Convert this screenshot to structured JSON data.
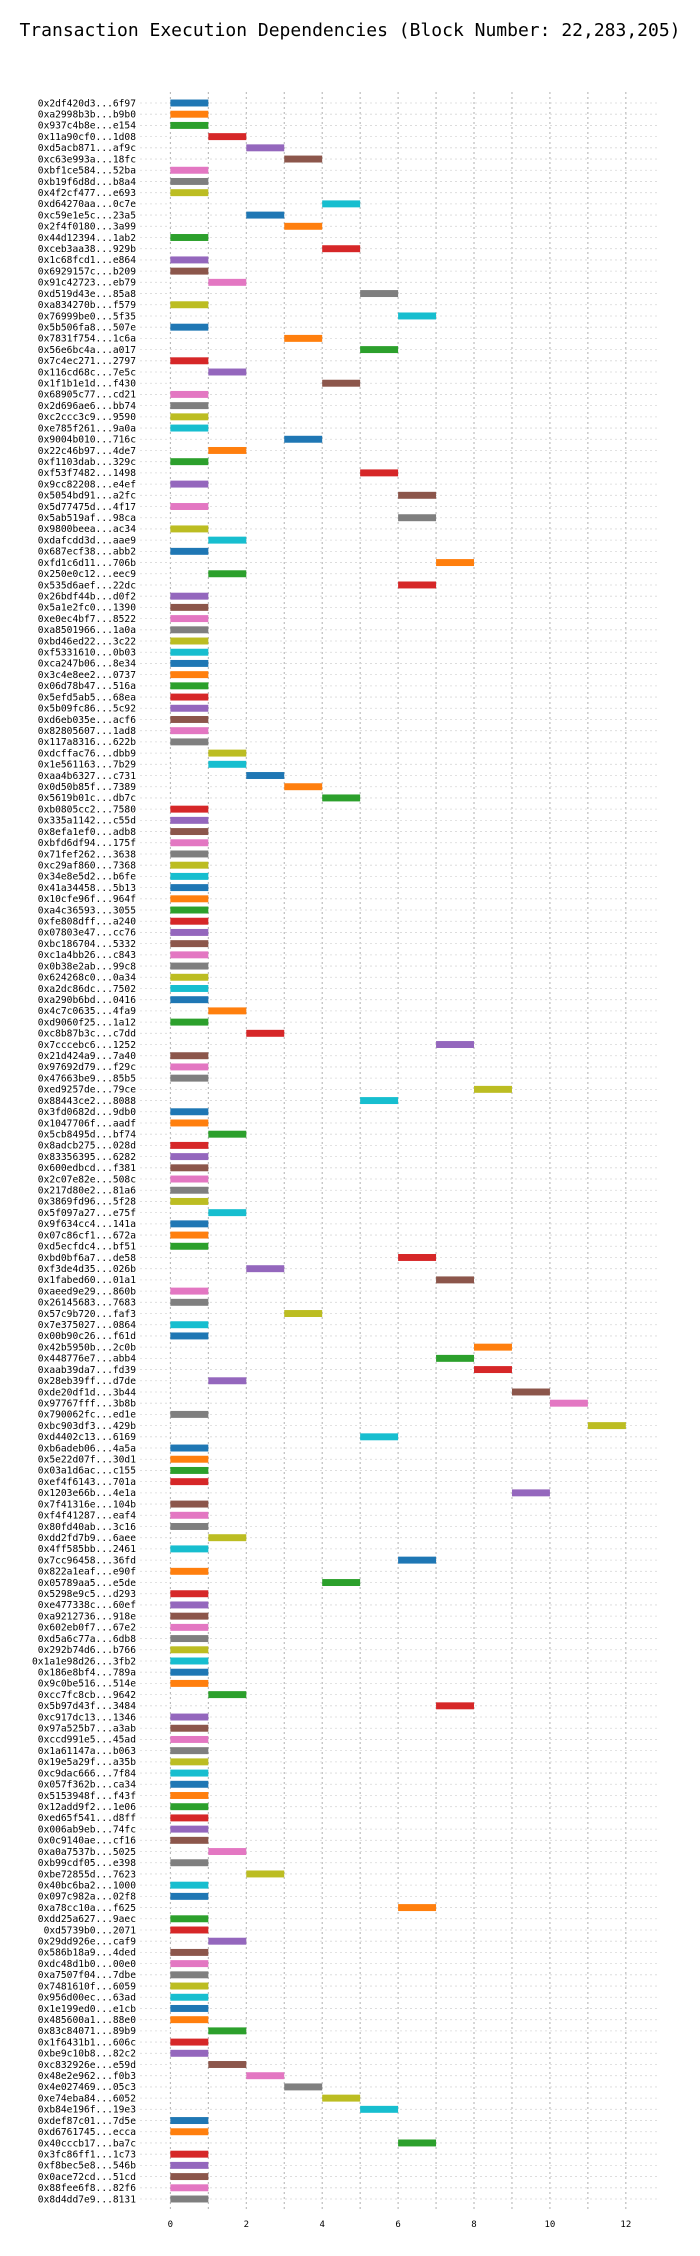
{
  "chart_data": {
    "type": "bar",
    "title": "Transaction Execution Dependencies (Block Number: 22,283,205)",
    "xlabel": "",
    "ylabel": "",
    "xlim": [
      -0.8,
      12.9
    ],
    "x_ticks": [
      0,
      2,
      4,
      6,
      8,
      10,
      12
    ],
    "grid": true,
    "palette": [
      "#1f77b4",
      "#ff7f0e",
      "#2ca02c",
      "#d62728",
      "#9467bd",
      "#8c564b",
      "#e377c2",
      "#7f7f7f",
      "#bcbd22",
      "#17becf"
    ],
    "transactions": [
      {
        "label": "0x2df420d3...6f97",
        "start": 0,
        "end": 1
      },
      {
        "label": "0xa2998b3b...b9b0",
        "start": 0,
        "end": 1
      },
      {
        "label": "0x937c4b8e...e154",
        "start": 0,
        "end": 1
      },
      {
        "label": "0x11a90cf0...1d08",
        "start": 1,
        "end": 2
      },
      {
        "label": "0xd5acb871...af9c",
        "start": 2,
        "end": 3
      },
      {
        "label": "0xc63e993a...18fc",
        "start": 3,
        "end": 4
      },
      {
        "label": "0xbf1ce584...52ba",
        "start": 0,
        "end": 1
      },
      {
        "label": "0xb19f6d8d...b8a4",
        "start": 0,
        "end": 1
      },
      {
        "label": "0x4f2cf477...e693",
        "start": 0,
        "end": 1
      },
      {
        "label": "0xd64270aa...0c7e",
        "start": 4,
        "end": 5
      },
      {
        "label": "0xc59e1e5c...23a5",
        "start": 2,
        "end": 3
      },
      {
        "label": "0x2f4f0180...3a99",
        "start": 3,
        "end": 4
      },
      {
        "label": "0x44d12394...1ab2",
        "start": 0,
        "end": 1
      },
      {
        "label": "0xceb3aa38...929b",
        "start": 4,
        "end": 5
      },
      {
        "label": "0x1c68fcd1...e864",
        "start": 0,
        "end": 1
      },
      {
        "label": "0x6929157c...b209",
        "start": 0,
        "end": 1
      },
      {
        "label": "0x91c42723...eb79",
        "start": 1,
        "end": 2
      },
      {
        "label": "0xd519d43e...85a8",
        "start": 5,
        "end": 6
      },
      {
        "label": "0xa834270b...f579",
        "start": 0,
        "end": 1
      },
      {
        "label": "0x76999be0...5f35",
        "start": 6,
        "end": 7
      },
      {
        "label": "0x5b506fa8...507e",
        "start": 0,
        "end": 1
      },
      {
        "label": "0x7831f754...1c6a",
        "start": 3,
        "end": 4
      },
      {
        "label": "0x56e6bc4a...a017",
        "start": 5,
        "end": 6
      },
      {
        "label": "0x7c4ec271...2797",
        "start": 0,
        "end": 1
      },
      {
        "label": "0x116cd68c...7e5c",
        "start": 1,
        "end": 2
      },
      {
        "label": "0x1f1b1e1d...f430",
        "start": 4,
        "end": 5
      },
      {
        "label": "0x68905c77...cd21",
        "start": 0,
        "end": 1
      },
      {
        "label": "0x2d696ae6...bb74",
        "start": 0,
        "end": 1
      },
      {
        "label": "0xc2ccc3c9...9590",
        "start": 0,
        "end": 1
      },
      {
        "label": "0xe785f261...9a0a",
        "start": 0,
        "end": 1
      },
      {
        "label": "0x9004b010...716c",
        "start": 3,
        "end": 4
      },
      {
        "label": "0x22c46b97...4de7",
        "start": 1,
        "end": 2
      },
      {
        "label": "0xf1103dab...329c",
        "start": 0,
        "end": 1
      },
      {
        "label": "0xf53f7482...1498",
        "start": 5,
        "end": 6
      },
      {
        "label": "0x9cc82208...e4ef",
        "start": 0,
        "end": 1
      },
      {
        "label": "0x5054bd91...a2fc",
        "start": 6,
        "end": 7
      },
      {
        "label": "0x5d77475d...4f17",
        "start": 0,
        "end": 1
      },
      {
        "label": "0x5ab519af...98ca",
        "start": 6,
        "end": 7
      },
      {
        "label": "0x9800beea...ac34",
        "start": 0,
        "end": 1
      },
      {
        "label": "0xdafcdd3d...aae9",
        "start": 1,
        "end": 2
      },
      {
        "label": "0x687ecf38...abb2",
        "start": 0,
        "end": 1
      },
      {
        "label": "0xfd1c6d11...706b",
        "start": 7,
        "end": 8
      },
      {
        "label": "0x250e0c12...eec9",
        "start": 1,
        "end": 2
      },
      {
        "label": "0x535d6aef...22dc",
        "start": 6,
        "end": 7
      },
      {
        "label": "0x26bdf44b...d0f2",
        "start": 0,
        "end": 1
      },
      {
        "label": "0x5a1e2fc0...1390",
        "start": 0,
        "end": 1
      },
      {
        "label": "0xe0ec4bf7...8522",
        "start": 0,
        "end": 1
      },
      {
        "label": "0xa8501966...1a0a",
        "start": 0,
        "end": 1
      },
      {
        "label": "0xbd46ed22...3c22",
        "start": 0,
        "end": 1
      },
      {
        "label": "0xf5331610...0b03",
        "start": 0,
        "end": 1
      },
      {
        "label": "0xca247b06...8e34",
        "start": 0,
        "end": 1
      },
      {
        "label": "0x3c4e8ee2...0737",
        "start": 0,
        "end": 1
      },
      {
        "label": "0x06d78b47...516a",
        "start": 0,
        "end": 1
      },
      {
        "label": "0x5efd5ab5...68ea",
        "start": 0,
        "end": 1
      },
      {
        "label": "0x5b09fc86...5c92",
        "start": 0,
        "end": 1
      },
      {
        "label": "0xd6eb035e...acf6",
        "start": 0,
        "end": 1
      },
      {
        "label": "0x82805607...1ad8",
        "start": 0,
        "end": 1
      },
      {
        "label": "0x117a8316...622b",
        "start": 0,
        "end": 1
      },
      {
        "label": "0xdcffac76...dbb9",
        "start": 1,
        "end": 2
      },
      {
        "label": "0x1e561163...7b29",
        "start": 1,
        "end": 2
      },
      {
        "label": "0xaa4b6327...c731",
        "start": 2,
        "end": 3
      },
      {
        "label": "0x0d50b85f...7389",
        "start": 3,
        "end": 4
      },
      {
        "label": "0x5619b01c...db7c",
        "start": 4,
        "end": 5
      },
      {
        "label": "0xb0805cc2...7580",
        "start": 0,
        "end": 1
      },
      {
        "label": "0x335a1142...c55d",
        "start": 0,
        "end": 1
      },
      {
        "label": "0x8efa1ef0...adb8",
        "start": 0,
        "end": 1
      },
      {
        "label": "0xbfd6df94...175f",
        "start": 0,
        "end": 1
      },
      {
        "label": "0x71fef262...3638",
        "start": 0,
        "end": 1
      },
      {
        "label": "0xc29af860...7368",
        "start": 0,
        "end": 1
      },
      {
        "label": "0x34e8e5d2...b6fe",
        "start": 0,
        "end": 1
      },
      {
        "label": "0x41a34458...5b13",
        "start": 0,
        "end": 1
      },
      {
        "label": "0x10cfe96f...964f",
        "start": 0,
        "end": 1
      },
      {
        "label": "0xa4c36593...3055",
        "start": 0,
        "end": 1
      },
      {
        "label": "0xfe808dff...a240",
        "start": 0,
        "end": 1
      },
      {
        "label": "0x07803e47...cc76",
        "start": 0,
        "end": 1
      },
      {
        "label": "0xbc186704...5332",
        "start": 0,
        "end": 1
      },
      {
        "label": "0xc1a4bb26...c843",
        "start": 0,
        "end": 1
      },
      {
        "label": "0x0b38e2ab...99c8",
        "start": 0,
        "end": 1
      },
      {
        "label": "0x624268c0...0a34",
        "start": 0,
        "end": 1
      },
      {
        "label": "0xa2dc86dc...7502",
        "start": 0,
        "end": 1
      },
      {
        "label": "0xa290b6bd...0416",
        "start": 0,
        "end": 1
      },
      {
        "label": "0x4c7c0635...4fa9",
        "start": 1,
        "end": 2
      },
      {
        "label": "0xd9060f25...1a12",
        "start": 0,
        "end": 1
      },
      {
        "label": "0xc8b87b3c...c7dd",
        "start": 2,
        "end": 3
      },
      {
        "label": "0x7cccebc6...1252",
        "start": 7,
        "end": 8
      },
      {
        "label": "0x21d424a9...7a40",
        "start": 0,
        "end": 1
      },
      {
        "label": "0x97692d79...f29c",
        "start": 0,
        "end": 1
      },
      {
        "label": "0x47663be9...85b5",
        "start": 0,
        "end": 1
      },
      {
        "label": "0xed9257de...79ce",
        "start": 8,
        "end": 9
      },
      {
        "label": "0x88443ce2...8088",
        "start": 5,
        "end": 6
      },
      {
        "label": "0x3fd0682d...9db0",
        "start": 0,
        "end": 1
      },
      {
        "label": "0x1047706f...aadf",
        "start": 0,
        "end": 1
      },
      {
        "label": "0x5cb8495d...bf74",
        "start": 1,
        "end": 2
      },
      {
        "label": "0x8adcb275...028d",
        "start": 0,
        "end": 1
      },
      {
        "label": "0x83356395...6282",
        "start": 0,
        "end": 1
      },
      {
        "label": "0x600edbcd...f381",
        "start": 0,
        "end": 1
      },
      {
        "label": "0x2c07e82e...508c",
        "start": 0,
        "end": 1
      },
      {
        "label": "0x217d80e2...81a6",
        "start": 0,
        "end": 1
      },
      {
        "label": "0x3869fd96...5f28",
        "start": 0,
        "end": 1
      },
      {
        "label": "0x5f097a27...e75f",
        "start": 1,
        "end": 2
      },
      {
        "label": "0x9f634cc4...141a",
        "start": 0,
        "end": 1
      },
      {
        "label": "0x07c86cf1...672a",
        "start": 0,
        "end": 1
      },
      {
        "label": "0xd5ecfdc4...bf51",
        "start": 0,
        "end": 1
      },
      {
        "label": "0xbd0bf6a7...de58",
        "start": 6,
        "end": 7
      },
      {
        "label": "0xf3de4d35...026b",
        "start": 2,
        "end": 3
      },
      {
        "label": "0x1fabed60...01a1",
        "start": 7,
        "end": 8
      },
      {
        "label": "0xaeed9e29...860b",
        "start": 0,
        "end": 1
      },
      {
        "label": "0x26145683...7683",
        "start": 0,
        "end": 1
      },
      {
        "label": "0x57c9b720...faf3",
        "start": 3,
        "end": 4
      },
      {
        "label": "0x7e375027...0864",
        "start": 0,
        "end": 1
      },
      {
        "label": "0x00b90c26...f61d",
        "start": 0,
        "end": 1
      },
      {
        "label": "0x42b5950b...2c0b",
        "start": 8,
        "end": 9
      },
      {
        "label": "0x448776e7...abb4",
        "start": 7,
        "end": 8
      },
      {
        "label": "0xaab39da7...fd39",
        "start": 8,
        "end": 9
      },
      {
        "label": "0x28eb39ff...d7de",
        "start": 1,
        "end": 2
      },
      {
        "label": "0xde20df1d...3b44",
        "start": 9,
        "end": 10
      },
      {
        "label": "0x97767fff...3b8b",
        "start": 10,
        "end": 11
      },
      {
        "label": "0x790062fc...ed1e",
        "start": 0,
        "end": 1
      },
      {
        "label": "0xbc903df3...429b",
        "start": 11,
        "end": 12
      },
      {
        "label": "0xd4402c13...6169",
        "start": 5,
        "end": 6
      },
      {
        "label": "0xb6adeb06...4a5a",
        "start": 0,
        "end": 1
      },
      {
        "label": "0x5e22d07f...30d1",
        "start": 0,
        "end": 1
      },
      {
        "label": "0x03a1d6ac...c155",
        "start": 0,
        "end": 1
      },
      {
        "label": "0xef4f6143...701a",
        "start": 0,
        "end": 1
      },
      {
        "label": "0x1203e66b...4e1a",
        "start": 9,
        "end": 10
      },
      {
        "label": "0x7f41316e...104b",
        "start": 0,
        "end": 1
      },
      {
        "label": "0xf4f41287...eaf4",
        "start": 0,
        "end": 1
      },
      {
        "label": "0x80fd40ab...3c16",
        "start": 0,
        "end": 1
      },
      {
        "label": "0xdd2fd7b9...6aee",
        "start": 1,
        "end": 2
      },
      {
        "label": "0x4ff585bb...2461",
        "start": 0,
        "end": 1
      },
      {
        "label": "0x7cc96458...36fd",
        "start": 6,
        "end": 7
      },
      {
        "label": "0x822a1eaf...e90f",
        "start": 0,
        "end": 1
      },
      {
        "label": "0x05789aa5...e5de",
        "start": 4,
        "end": 5
      },
      {
        "label": "0x5298e9c5...d293",
        "start": 0,
        "end": 1
      },
      {
        "label": "0xe477338c...60ef",
        "start": 0,
        "end": 1
      },
      {
        "label": "0xa9212736...918e",
        "start": 0,
        "end": 1
      },
      {
        "label": "0x602eb0f7...67e2",
        "start": 0,
        "end": 1
      },
      {
        "label": "0xd5a6c77a...6db8",
        "start": 0,
        "end": 1
      },
      {
        "label": "0x292b74d6...b766",
        "start": 0,
        "end": 1
      },
      {
        "label": "0x1a1e98d26...3fb2",
        "start": 0,
        "end": 1
      },
      {
        "label": "0x186e8bf4...789a",
        "start": 0,
        "end": 1
      },
      {
        "label": "0x9c0be516...514e",
        "start": 0,
        "end": 1
      },
      {
        "label": "0xcc7fc8cb...9642",
        "start": 1,
        "end": 2
      },
      {
        "label": "0x5b97d43f...3484",
        "start": 7,
        "end": 8
      },
      {
        "label": "0xc917dc13...1346",
        "start": 0,
        "end": 1
      },
      {
        "label": "0x97a525b7...a3ab",
        "start": 0,
        "end": 1
      },
      {
        "label": "0xccd991e5...45ad",
        "start": 0,
        "end": 1
      },
      {
        "label": "0x1a61147a...b063",
        "start": 0,
        "end": 1
      },
      {
        "label": "0x19e5a29f...a35b",
        "start": 0,
        "end": 1
      },
      {
        "label": "0xc9dac666...7f84",
        "start": 0,
        "end": 1
      },
      {
        "label": "0x057f362b...ca34",
        "start": 0,
        "end": 1
      },
      {
        "label": "0x5153948f...f43f",
        "start": 0,
        "end": 1
      },
      {
        "label": "0x12add9f2...1e06",
        "start": 0,
        "end": 1
      },
      {
        "label": "0xed65f541...d8ff",
        "start": 0,
        "end": 1
      },
      {
        "label": "0x006ab9eb...74fc",
        "start": 0,
        "end": 1
      },
      {
        "label": "0x0c9140ae...cf16",
        "start": 0,
        "end": 1
      },
      {
        "label": "0xa0a7537b...5025",
        "start": 1,
        "end": 2
      },
      {
        "label": "0xb99cdf05...e398",
        "start": 0,
        "end": 1
      },
      {
        "label": "0xbe72855d...7623",
        "start": 2,
        "end": 3
      },
      {
        "label": "0x40bc6ba2...1000",
        "start": 0,
        "end": 1
      },
      {
        "label": "0x097c982a...02f8",
        "start": 0,
        "end": 1
      },
      {
        "label": "0xa78cc10a...f625",
        "start": 6,
        "end": 7
      },
      {
        "label": "0xdd25a627...9aec",
        "start": 0,
        "end": 1
      },
      {
        "label": "0xd5739b0...2071",
        "start": 0,
        "end": 1
      },
      {
        "label": "0x29dd926e...caf9",
        "start": 1,
        "end": 2
      },
      {
        "label": "0x586b18a9...4ded",
        "start": 0,
        "end": 1
      },
      {
        "label": "0xdc48d1b0...00e0",
        "start": 0,
        "end": 1
      },
      {
        "label": "0xa7507f04...7dbe",
        "start": 0,
        "end": 1
      },
      {
        "label": "0x7481610f...6059",
        "start": 0,
        "end": 1
      },
      {
        "label": "0x956d00ec...63ad",
        "start": 0,
        "end": 1
      },
      {
        "label": "0x1e199ed0...e1cb",
        "start": 0,
        "end": 1
      },
      {
        "label": "0x485600a1...88e0",
        "start": 0,
        "end": 1
      },
      {
        "label": "0x83c84071...89b9",
        "start": 1,
        "end": 2
      },
      {
        "label": "0x1f6431b1...606c",
        "start": 0,
        "end": 1
      },
      {
        "label": "0xbe9c10b8...82c2",
        "start": 0,
        "end": 1
      },
      {
        "label": "0xc832926e...e59d",
        "start": 1,
        "end": 2
      },
      {
        "label": "0x48e2e962...f0b3",
        "start": 2,
        "end": 3
      },
      {
        "label": "0x4e027469...05c3",
        "start": 3,
        "end": 4
      },
      {
        "label": "0xe74eba84...6052",
        "start": 4,
        "end": 5
      },
      {
        "label": "0xb84e196f...19e3",
        "start": 5,
        "end": 6
      },
      {
        "label": "0xdef87c01...7d5e",
        "start": 0,
        "end": 1
      },
      {
        "label": "0xd6761745...ecca",
        "start": 0,
        "end": 1
      },
      {
        "label": "0x40cccb17...ba7c",
        "start": 6,
        "end": 7
      },
      {
        "label": "0x3fc86ff1...1c73",
        "start": 0,
        "end": 1
      },
      {
        "label": "0xf8bec5e8...546b",
        "start": 0,
        "end": 1
      },
      {
        "label": "0x0ace72cd...51cd",
        "start": 0,
        "end": 1
      },
      {
        "label": "0x88fee6f8...82f6",
        "start": 0,
        "end": 1
      },
      {
        "label": "0x8d4dd7e9...8131",
        "start": 0,
        "end": 1
      }
    ]
  }
}
